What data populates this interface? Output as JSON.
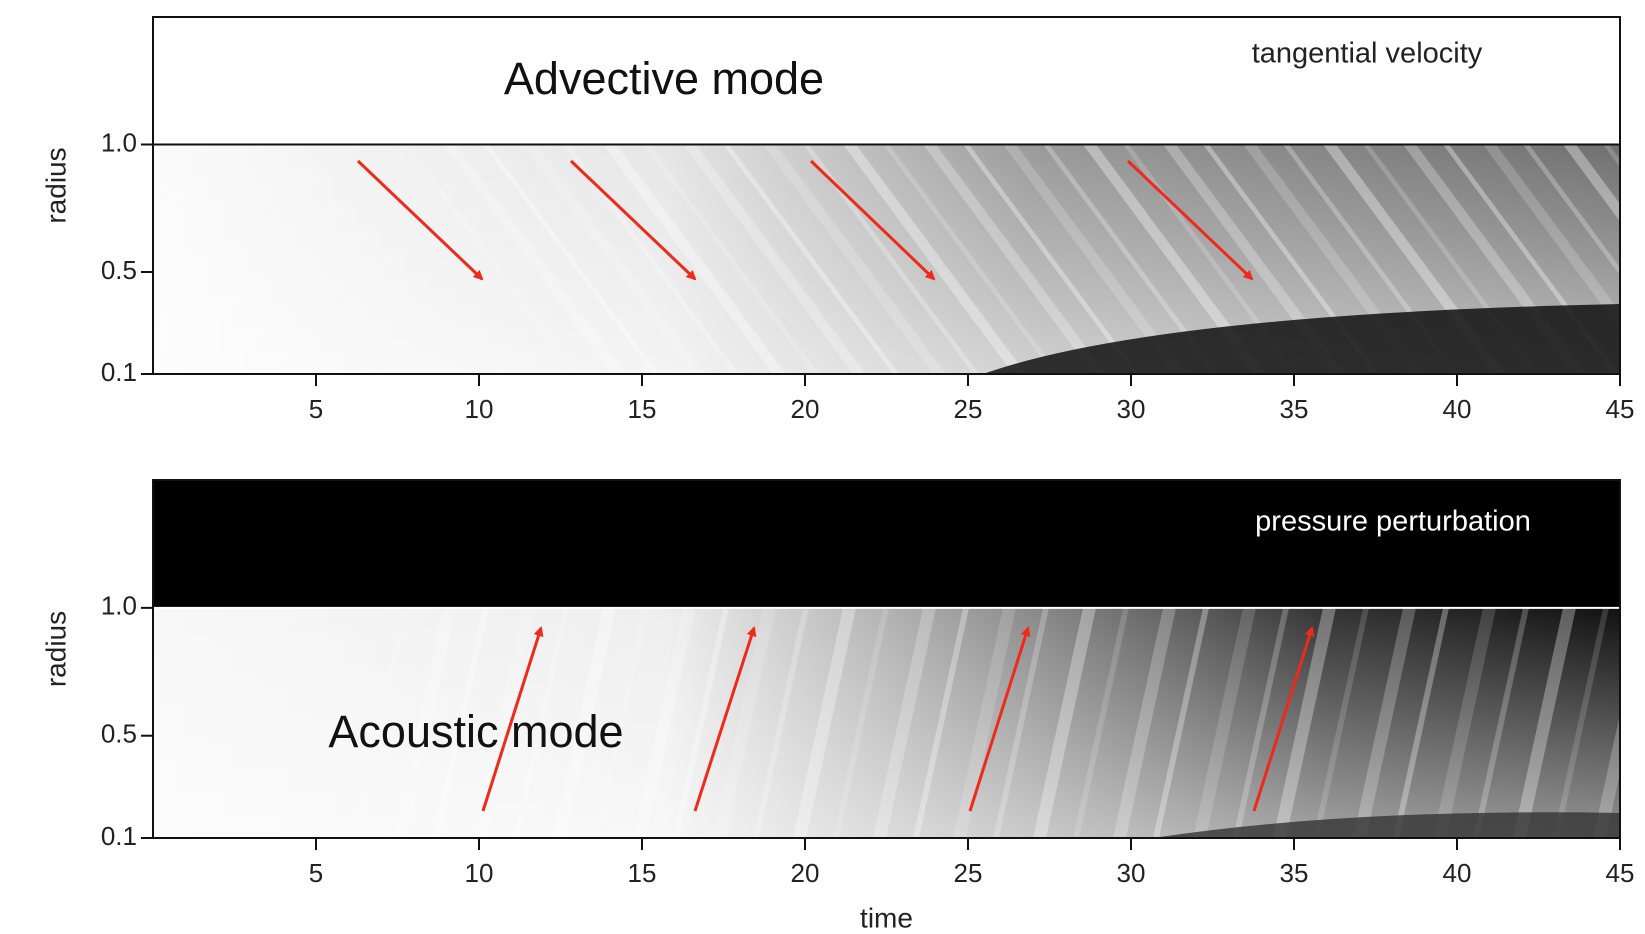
{
  "chart_data": [
    {
      "type": "heatmap",
      "label": "tangential velocity",
      "annotation": "Advective mode",
      "ylabel": "radius",
      "xlim": [
        0,
        45
      ],
      "xticks": [
        5,
        10,
        15,
        20,
        25,
        30,
        35,
        40,
        45
      ],
      "ylim": [
        0.1,
        1.5
      ],
      "yticks": [
        0.1,
        0.5,
        {
          "value": 1,
          "label": "1.0"
        }
      ]
    },
    {
      "type": "heatmap",
      "label": "pressure perturbation",
      "annotation": "Acoustic mode",
      "ylabel": "radius",
      "xlabel": "time",
      "xlim": [
        0,
        45
      ],
      "xticks": [
        5,
        10,
        15,
        20,
        25,
        30,
        35,
        40,
        45
      ],
      "ylim": [
        0.1,
        1.5
      ],
      "yticks": [
        0.1,
        0.5,
        {
          "value": 1,
          "label": "1.0"
        }
      ]
    }
  ]
}
